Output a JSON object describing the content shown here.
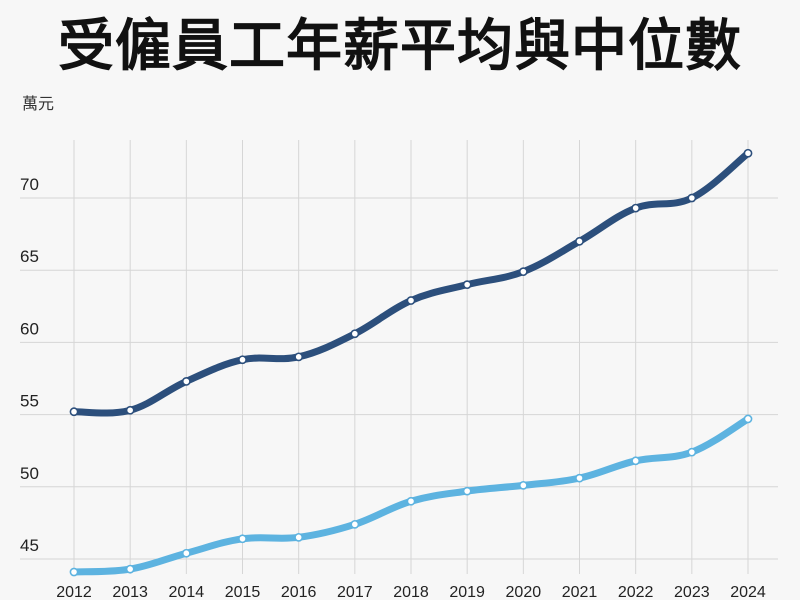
{
  "chart_data": {
    "type": "line",
    "title": "受僱員工年薪平均與中位數",
    "unit_label": "萬元",
    "categories": [
      "2012",
      "2013",
      "2014",
      "2015",
      "2016",
      "2017",
      "2018",
      "2019",
      "2020",
      "2021",
      "2022",
      "2023",
      "2024"
    ],
    "series": [
      {
        "color": "#2c4f7c",
        "values": [
          55.2,
          55.3,
          57.3,
          58.8,
          59.0,
          60.6,
          62.9,
          64.0,
          64.9,
          67.0,
          69.3,
          70.0,
          73.1
        ]
      },
      {
        "color": "#5db3e0",
        "values": [
          44.1,
          44.3,
          45.4,
          46.4,
          46.5,
          47.4,
          49.0,
          49.7,
          50.1,
          50.6,
          51.8,
          52.4,
          54.7
        ]
      }
    ],
    "yticks": [
      45,
      50,
      55,
      60,
      65,
      70
    ],
    "ylim": [
      43.5,
      75
    ],
    "grid": true
  }
}
